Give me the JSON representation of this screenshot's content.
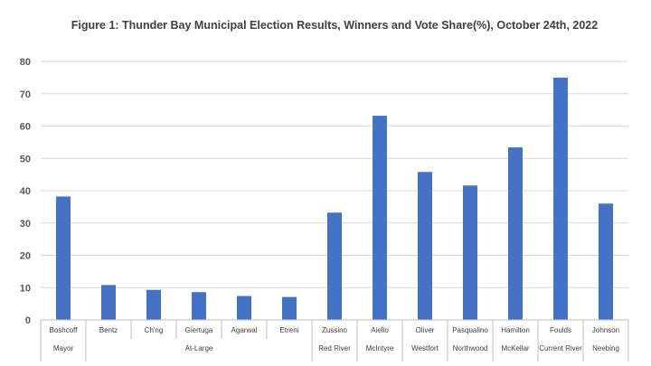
{
  "chart_data": {
    "type": "bar",
    "title": "Figure 1: Thunder Bay Municipal Election Results, Winners and Vote Share(%), October 24th, 2022",
    "xlabel": "",
    "ylabel": "",
    "ylim": [
      0,
      80
    ],
    "yticks": [
      0,
      10,
      20,
      30,
      40,
      50,
      60,
      70,
      80
    ],
    "grid": true,
    "legend": "none",
    "bar_color": "#4472C4",
    "categories": [
      "Boshcoff",
      "Bentz",
      "Ch'ng",
      "Giertuga",
      "Agarwal",
      "Etreni",
      "Zussino",
      "Aiello",
      "Oliver",
      "Pasqualino",
      "Hamilton",
      "Foulds",
      "Johnson"
    ],
    "values": [
      38.2,
      10.8,
      9.3,
      8.6,
      7.4,
      7.1,
      33.2,
      63.2,
      45.8,
      41.6,
      53.4,
      75.0,
      36.0
    ],
    "groups": [
      {
        "label": "Mayor",
        "count": 1
      },
      {
        "label": "At-Large",
        "count": 5
      },
      {
        "label": "Red River",
        "count": 1
      },
      {
        "label": "McIntyre",
        "count": 1
      },
      {
        "label": "Westfort",
        "count": 1
      },
      {
        "label": "Northwood",
        "count": 1
      },
      {
        "label": "McKellar",
        "count": 1
      },
      {
        "label": "Current River",
        "count": 1
      },
      {
        "label": "Neebing",
        "count": 1
      }
    ]
  }
}
